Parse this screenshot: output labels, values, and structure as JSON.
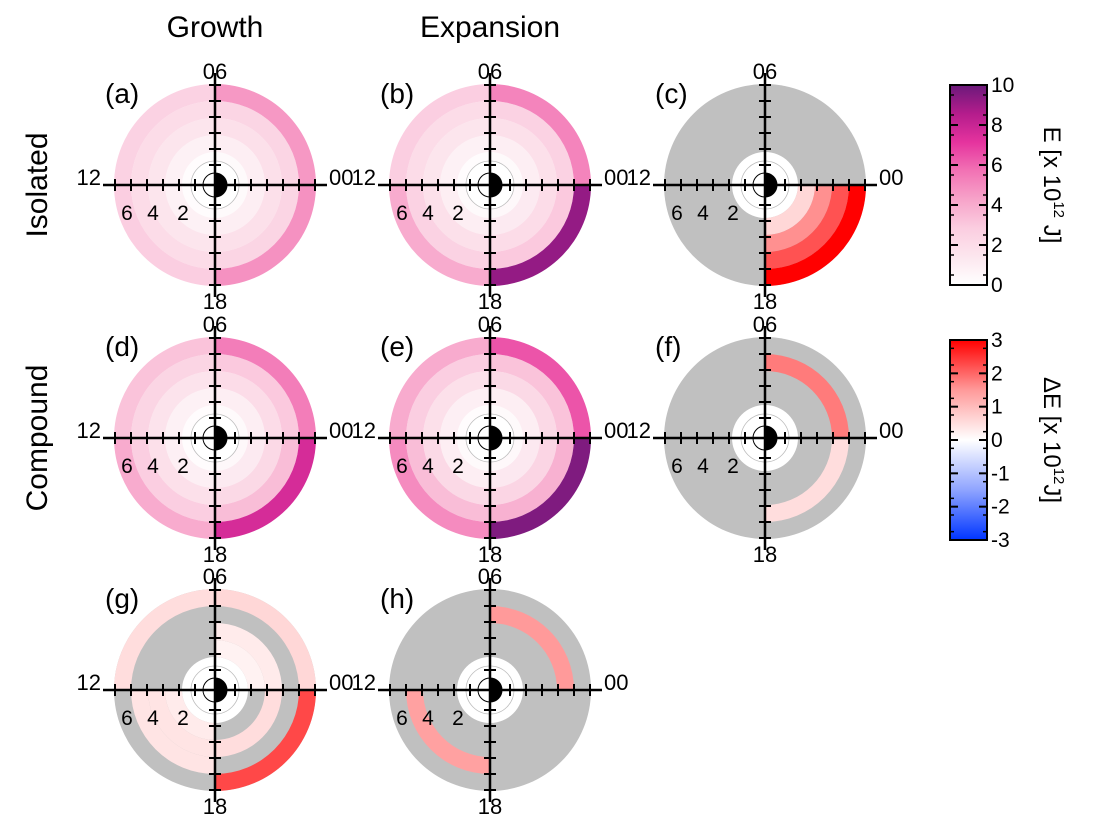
{
  "column_titles": [
    "Growth",
    "Expansion"
  ],
  "row_titles": [
    "Isolated",
    "Compound"
  ],
  "mlt_labels": {
    "top": "06",
    "left": "12",
    "right": "00",
    "bottom": "18"
  },
  "radial_labels": [
    "6",
    "4",
    "2"
  ],
  "colors": {
    "no_data": "#c0c0c0",
    "sun_disk": "#000000",
    "energy_scale": [
      "#ffffff",
      "#fce6ee",
      "#fbcde0",
      "#f7a3c9",
      "#f272b4",
      "#e5339e",
      "#b41c8c",
      "#6b1a7a"
    ],
    "difference_scale": [
      "#0035ff",
      "#8fa4ff",
      "#ffffff",
      "#ff9a9a",
      "#ff0000"
    ]
  },
  "colorbars": [
    {
      "title": "E [x 10",
      "title_sup": "12",
      "title_end": " J]",
      "kind": "energy",
      "range": [
        0,
        10
      ],
      "tick_labels": [
        "10",
        "8",
        "6",
        "4",
        "2",
        "0"
      ]
    },
    {
      "title": "ΔE [x 10",
      "title_sup": "12",
      "title_end": "J]",
      "kind": "difference",
      "range": [
        -3,
        3
      ],
      "tick_labels": [
        "3",
        "2",
        "1",
        "0",
        "-1",
        "-2",
        "-3"
      ]
    }
  ],
  "chart_data": {
    "type": "heatmap",
    "description_axes": "polar dial: magnetic local time sectors (06 top, 12 left, 18 bottom, 00 right) and radial distance rings 2, 4, 6",
    "ring_bands": [
      "2-3",
      "3-4",
      "4-5",
      "5-6",
      "6-7"
    ],
    "sector_order": [
      "00-06",
      "06-12",
      "12-18",
      "18-00"
    ],
    "panels": [
      {
        "label": "(a)",
        "scale": "energy",
        "values": {
          "00-06": [
            0.3,
            1.0,
            1.8,
            2.4,
            4.6
          ],
          "06-12": [
            0.2,
            0.8,
            1.5,
            2.0,
            2.6
          ],
          "12-18": [
            0.2,
            0.8,
            1.5,
            2.0,
            2.8
          ],
          "18-00": [
            0.3,
            1.0,
            1.8,
            2.4,
            4.8
          ]
        }
      },
      {
        "label": "(b)",
        "scale": "energy",
        "values": {
          "00-06": [
            0.3,
            1.0,
            1.8,
            2.6,
            5.2
          ],
          "06-12": [
            0.2,
            0.8,
            1.5,
            2.0,
            2.8
          ],
          "12-18": [
            0.3,
            1.0,
            1.8,
            2.6,
            4.0
          ],
          "18-00": [
            0.4,
            1.2,
            2.0,
            3.0,
            9.2
          ]
        }
      },
      {
        "label": "(c)",
        "scale": "difference",
        "values": {
          "00-06": [
            null,
            null,
            null,
            null,
            null
          ],
          "06-12": [
            null,
            null,
            null,
            null,
            null
          ],
          "12-18": [
            null,
            null,
            null,
            null,
            null
          ],
          "18-00": [
            null,
            0.6,
            1.6,
            2.2,
            3.0
          ]
        }
      },
      {
        "label": "(d)",
        "scale": "energy",
        "values": {
          "00-06": [
            0.3,
            1.0,
            2.0,
            3.0,
            5.4
          ],
          "06-12": [
            0.2,
            0.8,
            1.6,
            2.4,
            3.2
          ],
          "12-18": [
            0.2,
            0.9,
            1.8,
            2.8,
            4.0
          ],
          "18-00": [
            0.4,
            1.2,
            2.2,
            3.4,
            7.6
          ]
        }
      },
      {
        "label": "(e)",
        "scale": "energy",
        "values": {
          "00-06": [
            0.3,
            1.0,
            2.2,
            3.2,
            6.4
          ],
          "06-12": [
            0.2,
            0.9,
            1.8,
            2.8,
            4.0
          ],
          "12-18": [
            0.3,
            1.0,
            2.2,
            3.4,
            5.0
          ],
          "18-00": [
            0.4,
            1.3,
            2.4,
            3.8,
            9.6
          ]
        }
      },
      {
        "label": "(f)",
        "scale": "difference",
        "values": {
          "00-06": [
            null,
            null,
            null,
            1.8,
            null
          ],
          "06-12": [
            null,
            null,
            null,
            null,
            null
          ],
          "12-18": [
            null,
            null,
            null,
            null,
            null
          ],
          "18-00": [
            null,
            null,
            null,
            0.5,
            null
          ]
        }
      },
      {
        "label": "(g)",
        "scale": "difference",
        "values": {
          "00-06": [
            null,
            0.2,
            0.3,
            null,
            0.6
          ],
          "06-12": [
            null,
            null,
            null,
            null,
            0.5
          ],
          "12-18": [
            null,
            0.3,
            0.4,
            0.4,
            null
          ],
          "18-00": [
            null,
            null,
            0.5,
            null,
            2.3
          ]
        }
      },
      {
        "label": "(h)",
        "scale": "difference",
        "values": {
          "00-06": [
            null,
            null,
            null,
            1.5,
            null
          ],
          "06-12": [
            null,
            null,
            null,
            null,
            null
          ],
          "12-18": [
            null,
            null,
            null,
            1.4,
            null
          ],
          "18-00": [
            null,
            null,
            null,
            null,
            null
          ]
        }
      }
    ],
    "energy_range": [
      0,
      10
    ],
    "difference_range": [
      -3,
      3
    ]
  }
}
